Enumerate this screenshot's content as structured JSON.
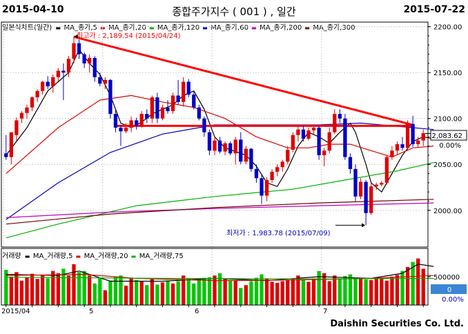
{
  "header": {
    "start_date": "2015-04-10",
    "title": "종합주가지수 ( 001 ) , 일간",
    "end_date": "2015-07-22"
  },
  "price_legend": {
    "chart_label": "일본식차트(일간)",
    "items": [
      {
        "label": "MA_종가,5",
        "color": "#000000"
      },
      {
        "label": "MA_종가,20",
        "color": "#e00000"
      },
      {
        "label": "MA_종가,120",
        "color": "#00b000"
      },
      {
        "label": "MA_종가,60",
        "color": "#0000c0"
      },
      {
        "label": "MA_종가,200",
        "color": "#c000c0"
      },
      {
        "label": "MA_종가,300",
        "color": "#700000"
      }
    ]
  },
  "annotations": {
    "high": "최고가 : 2,189.54 (2015/04/24)",
    "low": "최저가 : 1,983.78 (2015/07/09)"
  },
  "price_axis": {
    "ticks": [
      "2200.00",
      "2150.00",
      "2100.00",
      "2050.00",
      "2000.00"
    ],
    "current": "2,083.62",
    "change": "0.00%"
  },
  "volume_legend": {
    "chart_label": "거래량",
    "items": [
      {
        "label": "MA_거래량,5",
        "color": "#000000"
      },
      {
        "label": "MA_거래량,20",
        "color": "#e00000"
      },
      {
        "label": "MA_거래량,75",
        "color": "#00b000"
      }
    ]
  },
  "volume_axis": {
    "ticks": [
      "500000"
    ],
    "current": "0",
    "change": "0.00%"
  },
  "x_axis": {
    "ticks": [
      "2015/04",
      "5",
      "6",
      "7"
    ]
  },
  "footer": "Daishin Securities Co. Ltd.",
  "chart_data": {
    "type": "candlestick",
    "ylim": [
      1960,
      2205
    ],
    "volume_ylim": [
      0,
      900000
    ],
    "candles": [
      [
        2062,
        2082,
        2055,
        2058
      ],
      [
        2058,
        2083,
        2050,
        2085
      ],
      [
        2082,
        2101,
        2075,
        2098
      ],
      [
        2100,
        2108,
        2095,
        2106
      ],
      [
        2106,
        2115,
        2100,
        2112
      ],
      [
        2112,
        2124,
        2108,
        2123
      ],
      [
        2123,
        2132,
        2118,
        2130
      ],
      [
        2130,
        2141,
        2126,
        2140
      ],
      [
        2140,
        2146,
        2132,
        2135
      ],
      [
        2135,
        2148,
        2128,
        2145
      ],
      [
        2145,
        2155,
        2140,
        2152
      ],
      [
        2152,
        2160,
        2120,
        2150
      ],
      [
        2150,
        2168,
        2145,
        2165
      ],
      [
        2165,
        2189,
        2160,
        2182
      ],
      [
        2182,
        2186,
        2165,
        2170
      ],
      [
        2170,
        2172,
        2155,
        2160
      ],
      [
        2160,
        2170,
        2150,
        2166
      ],
      [
        2166,
        2168,
        2140,
        2145
      ],
      [
        2145,
        2150,
        2135,
        2138
      ],
      [
        2138,
        2145,
        2132,
        2142
      ],
      [
        2142,
        2143,
        2100,
        2105
      ],
      [
        2105,
        2110,
        2085,
        2090
      ],
      [
        2090,
        2093,
        2070,
        2086
      ],
      [
        2086,
        2095,
        2084,
        2090
      ],
      [
        2090,
        2102,
        2085,
        2098
      ],
      [
        2098,
        2101,
        2088,
        2092
      ],
      [
        2092,
        2108,
        2090,
        2105
      ],
      [
        2105,
        2110,
        2095,
        2100
      ],
      [
        2100,
        2125,
        2095,
        2123
      ],
      [
        2123,
        2128,
        2095,
        2100
      ],
      [
        2100,
        2115,
        2098,
        2112
      ],
      [
        2112,
        2120,
        2105,
        2108
      ],
      [
        2108,
        2128,
        2105,
        2125
      ],
      [
        2125,
        2142,
        2115,
        2118
      ],
      [
        2118,
        2145,
        2113,
        2140
      ],
      [
        2140,
        2143,
        2123,
        2126
      ],
      [
        2126,
        2129,
        2110,
        2112
      ],
      [
        2112,
        2115,
        2098,
        2100
      ],
      [
        2100,
        2102,
        2080,
        2085
      ],
      [
        2085,
        2088,
        2060,
        2065
      ],
      [
        2065,
        2080,
        2060,
        2076
      ],
      [
        2076,
        2080,
        2062,
        2064
      ],
      [
        2064,
        2075,
        2060,
        2073
      ],
      [
        2073,
        2075,
        2060,
        2062
      ],
      [
        2062,
        2080,
        2050,
        2077
      ],
      [
        2077,
        2085,
        2050,
        2053
      ],
      [
        2053,
        2070,
        2050,
        2067
      ],
      [
        2067,
        2068,
        2042,
        2045
      ],
      [
        2045,
        2050,
        2030,
        2035
      ],
      [
        2035,
        2040,
        2007,
        2016
      ],
      [
        2016,
        2036,
        2010,
        2033
      ],
      [
        2033,
        2045,
        2030,
        2042
      ],
      [
        2042,
        2050,
        2037,
        2047
      ],
      [
        2047,
        2055,
        2042,
        2053
      ],
      [
        2053,
        2070,
        2050,
        2066
      ],
      [
        2066,
        2085,
        2063,
        2082
      ],
      [
        2082,
        2092,
        2075,
        2088
      ],
      [
        2088,
        2092,
        2075,
        2078
      ],
      [
        2078,
        2090,
        2076,
        2087
      ],
      [
        2087,
        2093,
        2083,
        2090
      ],
      [
        2090,
        2092,
        2055,
        2060
      ],
      [
        2060,
        2068,
        2048,
        2065
      ],
      [
        2065,
        2090,
        2062,
        2085
      ],
      [
        2085,
        2110,
        2083,
        2105
      ],
      [
        2105,
        2110,
        2095,
        2100
      ],
      [
        2100,
        2105,
        2055,
        2058
      ],
      [
        2058,
        2062,
        2040,
        2045
      ],
      [
        2045,
        2050,
        2010,
        2015
      ],
      [
        2015,
        2035,
        2012,
        2031
      ],
      [
        2031,
        2033,
        1984,
        1997
      ],
      [
        1997,
        2030,
        1995,
        2026
      ],
      [
        2026,
        2030,
        2022,
        2028
      ],
      [
        2028,
        2032,
        2026,
        2030
      ],
      [
        2030,
        2060,
        2028,
        2058
      ],
      [
        2058,
        2070,
        2055,
        2065
      ],
      [
        2065,
        2075,
        2060,
        2072
      ],
      [
        2072,
        2080,
        2065,
        2068
      ],
      [
        2068,
        2098,
        2066,
        2094
      ],
      [
        2094,
        2103,
        2069,
        2072
      ],
      [
        2072,
        2080,
        2068,
        2076
      ],
      [
        2076,
        2088,
        2070,
        2084
      ]
    ],
    "volumes": [
      620000,
      500000,
      580000,
      430000,
      490000,
      550000,
      460000,
      520000,
      470000,
      600000,
      560000,
      640000,
      520000,
      720000,
      580000,
      600000,
      520000,
      380000,
      480000,
      260000,
      430000,
      500000,
      520000,
      340000,
      470000,
      440000,
      420000,
      350000,
      470000,
      360000,
      400000,
      430000,
      380000,
      420000,
      520000,
      470000,
      380000,
      470000,
      480000,
      490000,
      520000,
      560000,
      470000,
      430000,
      430000,
      300000,
      350000,
      420000,
      480000,
      540000,
      470000,
      410000,
      390000,
      420000,
      440000,
      470000,
      520000,
      450000,
      410000,
      470000,
      600000,
      560000,
      420000,
      520000,
      470000,
      510000,
      540000,
      470000,
      480000,
      450000,
      440000,
      490000,
      480000,
      430000,
      500000,
      530000,
      600000,
      670000,
      760000,
      820000,
      640000
    ],
    "ma_lines": [
      {
        "name": "MA_종가,5",
        "color": "#000000",
        "points": [
          [
            0,
            2060
          ],
          [
            4,
            2090
          ],
          [
            8,
            2130
          ],
          [
            12,
            2150
          ],
          [
            14,
            2175
          ],
          [
            16,
            2160
          ],
          [
            18,
            2148
          ],
          [
            20,
            2125
          ],
          [
            22,
            2095
          ],
          [
            24,
            2090
          ],
          [
            26,
            2096
          ],
          [
            28,
            2105
          ],
          [
            30,
            2110
          ],
          [
            32,
            2115
          ],
          [
            34,
            2125
          ],
          [
            36,
            2130
          ],
          [
            38,
            2110
          ],
          [
            40,
            2080
          ],
          [
            42,
            2068
          ],
          [
            44,
            2064
          ],
          [
            46,
            2060
          ],
          [
            48,
            2048
          ],
          [
            50,
            2030
          ],
          [
            52,
            2026
          ],
          [
            54,
            2045
          ],
          [
            56,
            2070
          ],
          [
            58,
            2085
          ],
          [
            60,
            2080
          ],
          [
            62,
            2073
          ],
          [
            64,
            2085
          ],
          [
            66,
            2095
          ],
          [
            67,
            2085
          ],
          [
            69,
            2050
          ],
          [
            70,
            2030
          ],
          [
            72,
            2020
          ],
          [
            74,
            2040
          ],
          [
            76,
            2060
          ],
          [
            78,
            2075
          ],
          [
            80,
            2080
          ],
          [
            82,
            2078
          ]
        ]
      },
      {
        "name": "MA_종가,20",
        "color": "#e00000",
        "points": [
          [
            0,
            2040
          ],
          [
            10,
            2090
          ],
          [
            18,
            2120
          ],
          [
            24,
            2125
          ],
          [
            30,
            2118
          ],
          [
            36,
            2112
          ],
          [
            42,
            2100
          ],
          [
            48,
            2080
          ],
          [
            54,
            2068
          ],
          [
            58,
            2068
          ],
          [
            62,
            2072
          ],
          [
            66,
            2072
          ],
          [
            70,
            2065
          ],
          [
            74,
            2058
          ],
          [
            78,
            2068
          ],
          [
            82,
            2070
          ]
        ]
      },
      {
        "name": "MA_종가,60",
        "color": "#0000c0",
        "points": [
          [
            0,
            1990
          ],
          [
            10,
            2030
          ],
          [
            20,
            2063
          ],
          [
            30,
            2083
          ],
          [
            40,
            2093
          ],
          [
            50,
            2093
          ],
          [
            60,
            2093
          ],
          [
            68,
            2095
          ],
          [
            74,
            2092
          ],
          [
            82,
            2088
          ]
        ]
      },
      {
        "name": "MA_종가,120",
        "color": "#00b000",
        "points": [
          [
            0,
            1970
          ],
          [
            10,
            1985
          ],
          [
            25,
            2005
          ],
          [
            40,
            2015
          ],
          [
            55,
            2023
          ],
          [
            65,
            2033
          ],
          [
            75,
            2043
          ],
          [
            82,
            2052
          ]
        ]
      },
      {
        "name": "MA_종가,200",
        "color": "#c000c0",
        "points": [
          [
            0,
            1992
          ],
          [
            20,
            1998
          ],
          [
            40,
            2002
          ],
          [
            60,
            2005
          ],
          [
            82,
            2008
          ]
        ]
      },
      {
        "name": "MA_종가,300",
        "color": "#700000",
        "points": [
          [
            0,
            1985
          ],
          [
            20,
            1996
          ],
          [
            40,
            2003
          ],
          [
            60,
            2008
          ],
          [
            82,
            2012
          ]
        ]
      }
    ],
    "volume_ma_lines": [
      {
        "name": "MA_거래량,5",
        "color": "#000000",
        "points": [
          [
            0,
            540000
          ],
          [
            10,
            520000
          ],
          [
            14,
            600000
          ],
          [
            20,
            420000
          ],
          [
            30,
            420000
          ],
          [
            40,
            470000
          ],
          [
            50,
            430000
          ],
          [
            60,
            500000
          ],
          [
            70,
            470000
          ],
          [
            76,
            560000
          ],
          [
            79,
            720000
          ],
          [
            82,
            680000
          ]
        ]
      },
      {
        "name": "MA_거래량,20",
        "color": "#e00000",
        "points": [
          [
            0,
            520000
          ],
          [
            15,
            540000
          ],
          [
            25,
            470000
          ],
          [
            40,
            430000
          ],
          [
            55,
            440000
          ],
          [
            70,
            470000
          ],
          [
            82,
            520000
          ]
        ]
      },
      {
        "name": "MA_거래량,75",
        "color": "#00b000",
        "points": [
          [
            0,
            490000
          ],
          [
            30,
            470000
          ],
          [
            60,
            460000
          ],
          [
            82,
            470000
          ]
        ]
      }
    ],
    "trend_lines": [
      {
        "color": "#ff0000",
        "from": [
          13,
          2189
        ],
        "to": [
          78,
          2093
        ]
      },
      {
        "color": "#ff0000",
        "from": [
          21,
          2092
        ],
        "to": [
          78,
          2092
        ]
      }
    ]
  }
}
